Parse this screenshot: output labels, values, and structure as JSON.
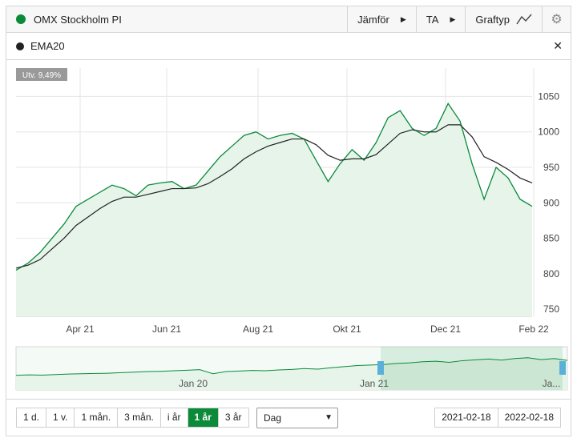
{
  "header": {
    "title": "OMX Stockholm PI",
    "series_color": "#0b8a3a",
    "compare_label": "Jämför",
    "ta_label": "TA",
    "graph_type_label": "Graftyp",
    "graph_type_icon": "line-chart-icon",
    "settings_icon": "gear-icon"
  },
  "indicator": {
    "label": "EMA20",
    "color": "#222222",
    "close_icon": "close-icon"
  },
  "badge": {
    "text": "Utv. 9,49%"
  },
  "chart_data": {
    "type": "line",
    "title": "",
    "y_ticks": [
      "1050",
      "1000",
      "950",
      "900",
      "850",
      "800",
      "750"
    ],
    "ylim": [
      740,
      1090
    ],
    "x_ticks": [
      "Apr 21",
      "Jun 21",
      "Aug 21",
      "Okt 21",
      "Dec 21",
      "Feb 22"
    ],
    "series": [
      {
        "name": "OMX Stockholm PI",
        "color": "#0b8a3a",
        "values": [
          805,
          815,
          830,
          850,
          870,
          895,
          905,
          915,
          925,
          920,
          910,
          925,
          928,
          930,
          920,
          925,
          945,
          965,
          980,
          995,
          1000,
          990,
          995,
          998,
          990,
          960,
          930,
          955,
          975,
          960,
          985,
          1020,
          1030,
          1005,
          995,
          1005,
          1040,
          1015,
          955,
          905,
          950,
          935,
          905,
          895
        ]
      },
      {
        "name": "EMA20",
        "color": "#222222",
        "values": [
          808,
          812,
          820,
          835,
          850,
          868,
          880,
          892,
          902,
          908,
          908,
          912,
          916,
          920,
          920,
          921,
          927,
          937,
          948,
          962,
          972,
          980,
          985,
          990,
          990,
          982,
          967,
          960,
          962,
          962,
          968,
          983,
          998,
          1003,
          1000,
          1000,
          1010,
          1010,
          993,
          965,
          957,
          947,
          935,
          928
        ]
      }
    ],
    "navigator": {
      "x_ticks": [
        "Jan 20",
        "Jan 21",
        "Ja..."
      ],
      "values": [
        0.3,
        0.32,
        0.31,
        0.33,
        0.35,
        0.36,
        0.37,
        0.38,
        0.4,
        0.42,
        0.44,
        0.45,
        0.47,
        0.49,
        0.51,
        0.36,
        0.44,
        0.46,
        0.48,
        0.47,
        0.5,
        0.52,
        0.55,
        0.53,
        0.58,
        0.62,
        0.66,
        0.68,
        0.7,
        0.74,
        0.76,
        0.8,
        0.82,
        0.78,
        0.84,
        0.87,
        0.9,
        0.86,
        0.92,
        0.95,
        0.88,
        0.92,
        0.85
      ]
    }
  },
  "footer": {
    "periods": [
      {
        "label": "1 d.",
        "active": false
      },
      {
        "label": "1 v.",
        "active": false
      },
      {
        "label": "1 mån.",
        "active": false
      },
      {
        "label": "3 mån.",
        "active": false
      },
      {
        "label": "i år",
        "active": false
      },
      {
        "label": "1 år",
        "active": true
      },
      {
        "label": "3 år",
        "active": false
      }
    ],
    "interval_value": "Dag",
    "date_from": "2021-02-18",
    "date_to": "2022-02-18"
  }
}
